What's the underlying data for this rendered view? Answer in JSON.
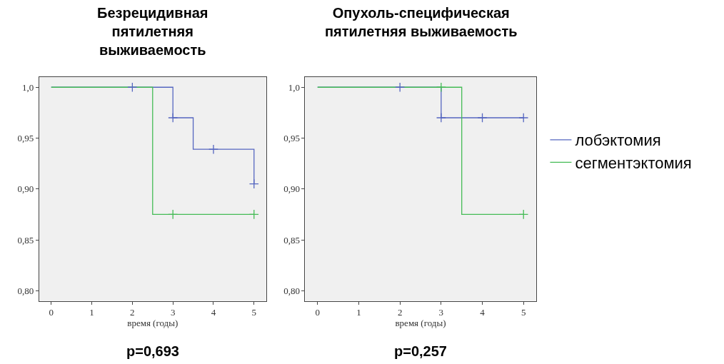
{
  "chart_data": [
    {
      "type": "step",
      "title": "Безрецидивная\nпятилетняя\nвыживаемость",
      "xlabel": "время (годы)",
      "annotations": [
        "p=0,693"
      ],
      "series": [
        {
          "color": "#5566c0",
          "x": [
            0,
            3,
            3.5,
            5
          ],
          "values": [
            1.0,
            0.97,
            0.939,
            0.905
          ]
        },
        {
          "color": "#44bb55",
          "x": [
            0,
            2.5,
            5
          ],
          "values": [
            1.0,
            0.875,
            0.875
          ]
        },
        {
          "type": "scatter",
          "marker": "cross",
          "color": "#5566c0",
          "x": [
            2,
            3,
            4,
            5
          ],
          "values": [
            1.0,
            0.97,
            0.939,
            0.905
          ]
        },
        {
          "type": "scatter",
          "marker": "cross",
          "color": "#44bb55",
          "x": [
            3,
            5
          ],
          "values": [
            0.875,
            0.875
          ]
        }
      ],
      "xlim": [
        -0.3,
        5.3
      ],
      "xticks": [
        0,
        1,
        2,
        3,
        4,
        5
      ],
      "ylim": [
        0.79,
        1.01
      ],
      "yticks": [
        {
          "value": 0.8,
          "label": "0,80"
        },
        {
          "value": 0.85,
          "label": "0,85"
        },
        {
          "value": 0.9,
          "label": "0,90"
        },
        {
          "value": 0.95,
          "label": "0,95"
        },
        {
          "value": 1.0,
          "label": "1,0"
        }
      ],
      "grid": false,
      "legend": false
    },
    {
      "type": "step",
      "title": "Опухоль-специфическая\nпятилетняя выживаемость",
      "xlabel": "время (годы)",
      "annotations": [
        "p=0,257"
      ],
      "series": [
        {
          "name": "лобэктомия",
          "color": "#5566c0",
          "x": [
            0,
            3,
            5
          ],
          "values": [
            1.0,
            0.97,
            0.97
          ]
        },
        {
          "name": "сегментэктомия",
          "color": "#44bb55",
          "x": [
            0,
            3.5,
            5
          ],
          "values": [
            1.0,
            0.875,
            0.875
          ]
        },
        {
          "type": "scatter",
          "marker": "cross",
          "color": "#5566c0",
          "x": [
            2,
            3,
            4,
            5
          ],
          "values": [
            1.0,
            0.97,
            0.97,
            0.97
          ]
        },
        {
          "type": "scatter",
          "marker": "cross",
          "color": "#44bb55",
          "x": [
            3,
            5
          ],
          "values": [
            1.0,
            0.875
          ]
        }
      ],
      "xlim": [
        -0.3,
        5.3
      ],
      "xticks": [
        0,
        1,
        2,
        3,
        4,
        5
      ],
      "ylim": [
        0.79,
        1.01
      ],
      "yticks": [
        {
          "value": 0.8,
          "label": "0,80"
        },
        {
          "value": 0.85,
          "label": "0,85"
        },
        {
          "value": 0.9,
          "label": "0,90"
        },
        {
          "value": 0.95,
          "label": "0,95"
        },
        {
          "value": 1.0,
          "label": "1,0"
        }
      ],
      "grid": false,
      "legend": "right"
    }
  ]
}
